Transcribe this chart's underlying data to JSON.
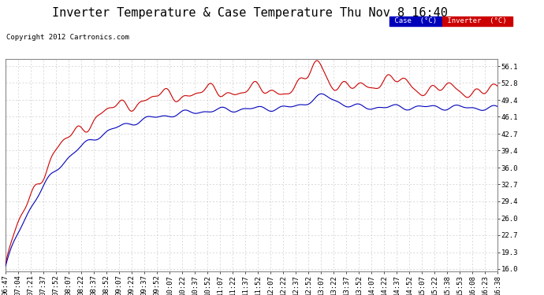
{
  "title": "Inverter Temperature & Case Temperature Thu Nov 8 16:40",
  "copyright": "Copyright 2012 Cartronics.com",
  "background_color": "#ffffff",
  "grid_color": "#cccccc",
  "plot_bg_color": "#ffffff",
  "yticks": [
    16.0,
    19.3,
    22.7,
    26.0,
    29.4,
    32.7,
    36.0,
    39.4,
    42.7,
    46.1,
    49.4,
    52.8,
    56.1
  ],
  "ylim": [
    15.5,
    57.5
  ],
  "case_color": "#0000bb",
  "inverter_color": "#cc0000",
  "legend_case_bg": "#0000bb",
  "legend_inverter_bg": "#cc0000",
  "xtick_labels": [
    "06:47",
    "07:04",
    "07:21",
    "07:37",
    "07:52",
    "08:07",
    "08:22",
    "08:37",
    "08:52",
    "09:07",
    "09:22",
    "09:37",
    "09:52",
    "10:07",
    "10:22",
    "10:37",
    "10:52",
    "11:07",
    "11:22",
    "11:37",
    "11:52",
    "12:07",
    "12:22",
    "12:37",
    "12:52",
    "13:07",
    "13:22",
    "13:37",
    "13:52",
    "14:07",
    "14:22",
    "14:37",
    "14:52",
    "15:07",
    "15:22",
    "15:38",
    "15:53",
    "16:08",
    "16:23",
    "16:38"
  ],
  "title_fontsize": 11,
  "tick_fontsize": 6.5,
  "copyright_fontsize": 6.5
}
